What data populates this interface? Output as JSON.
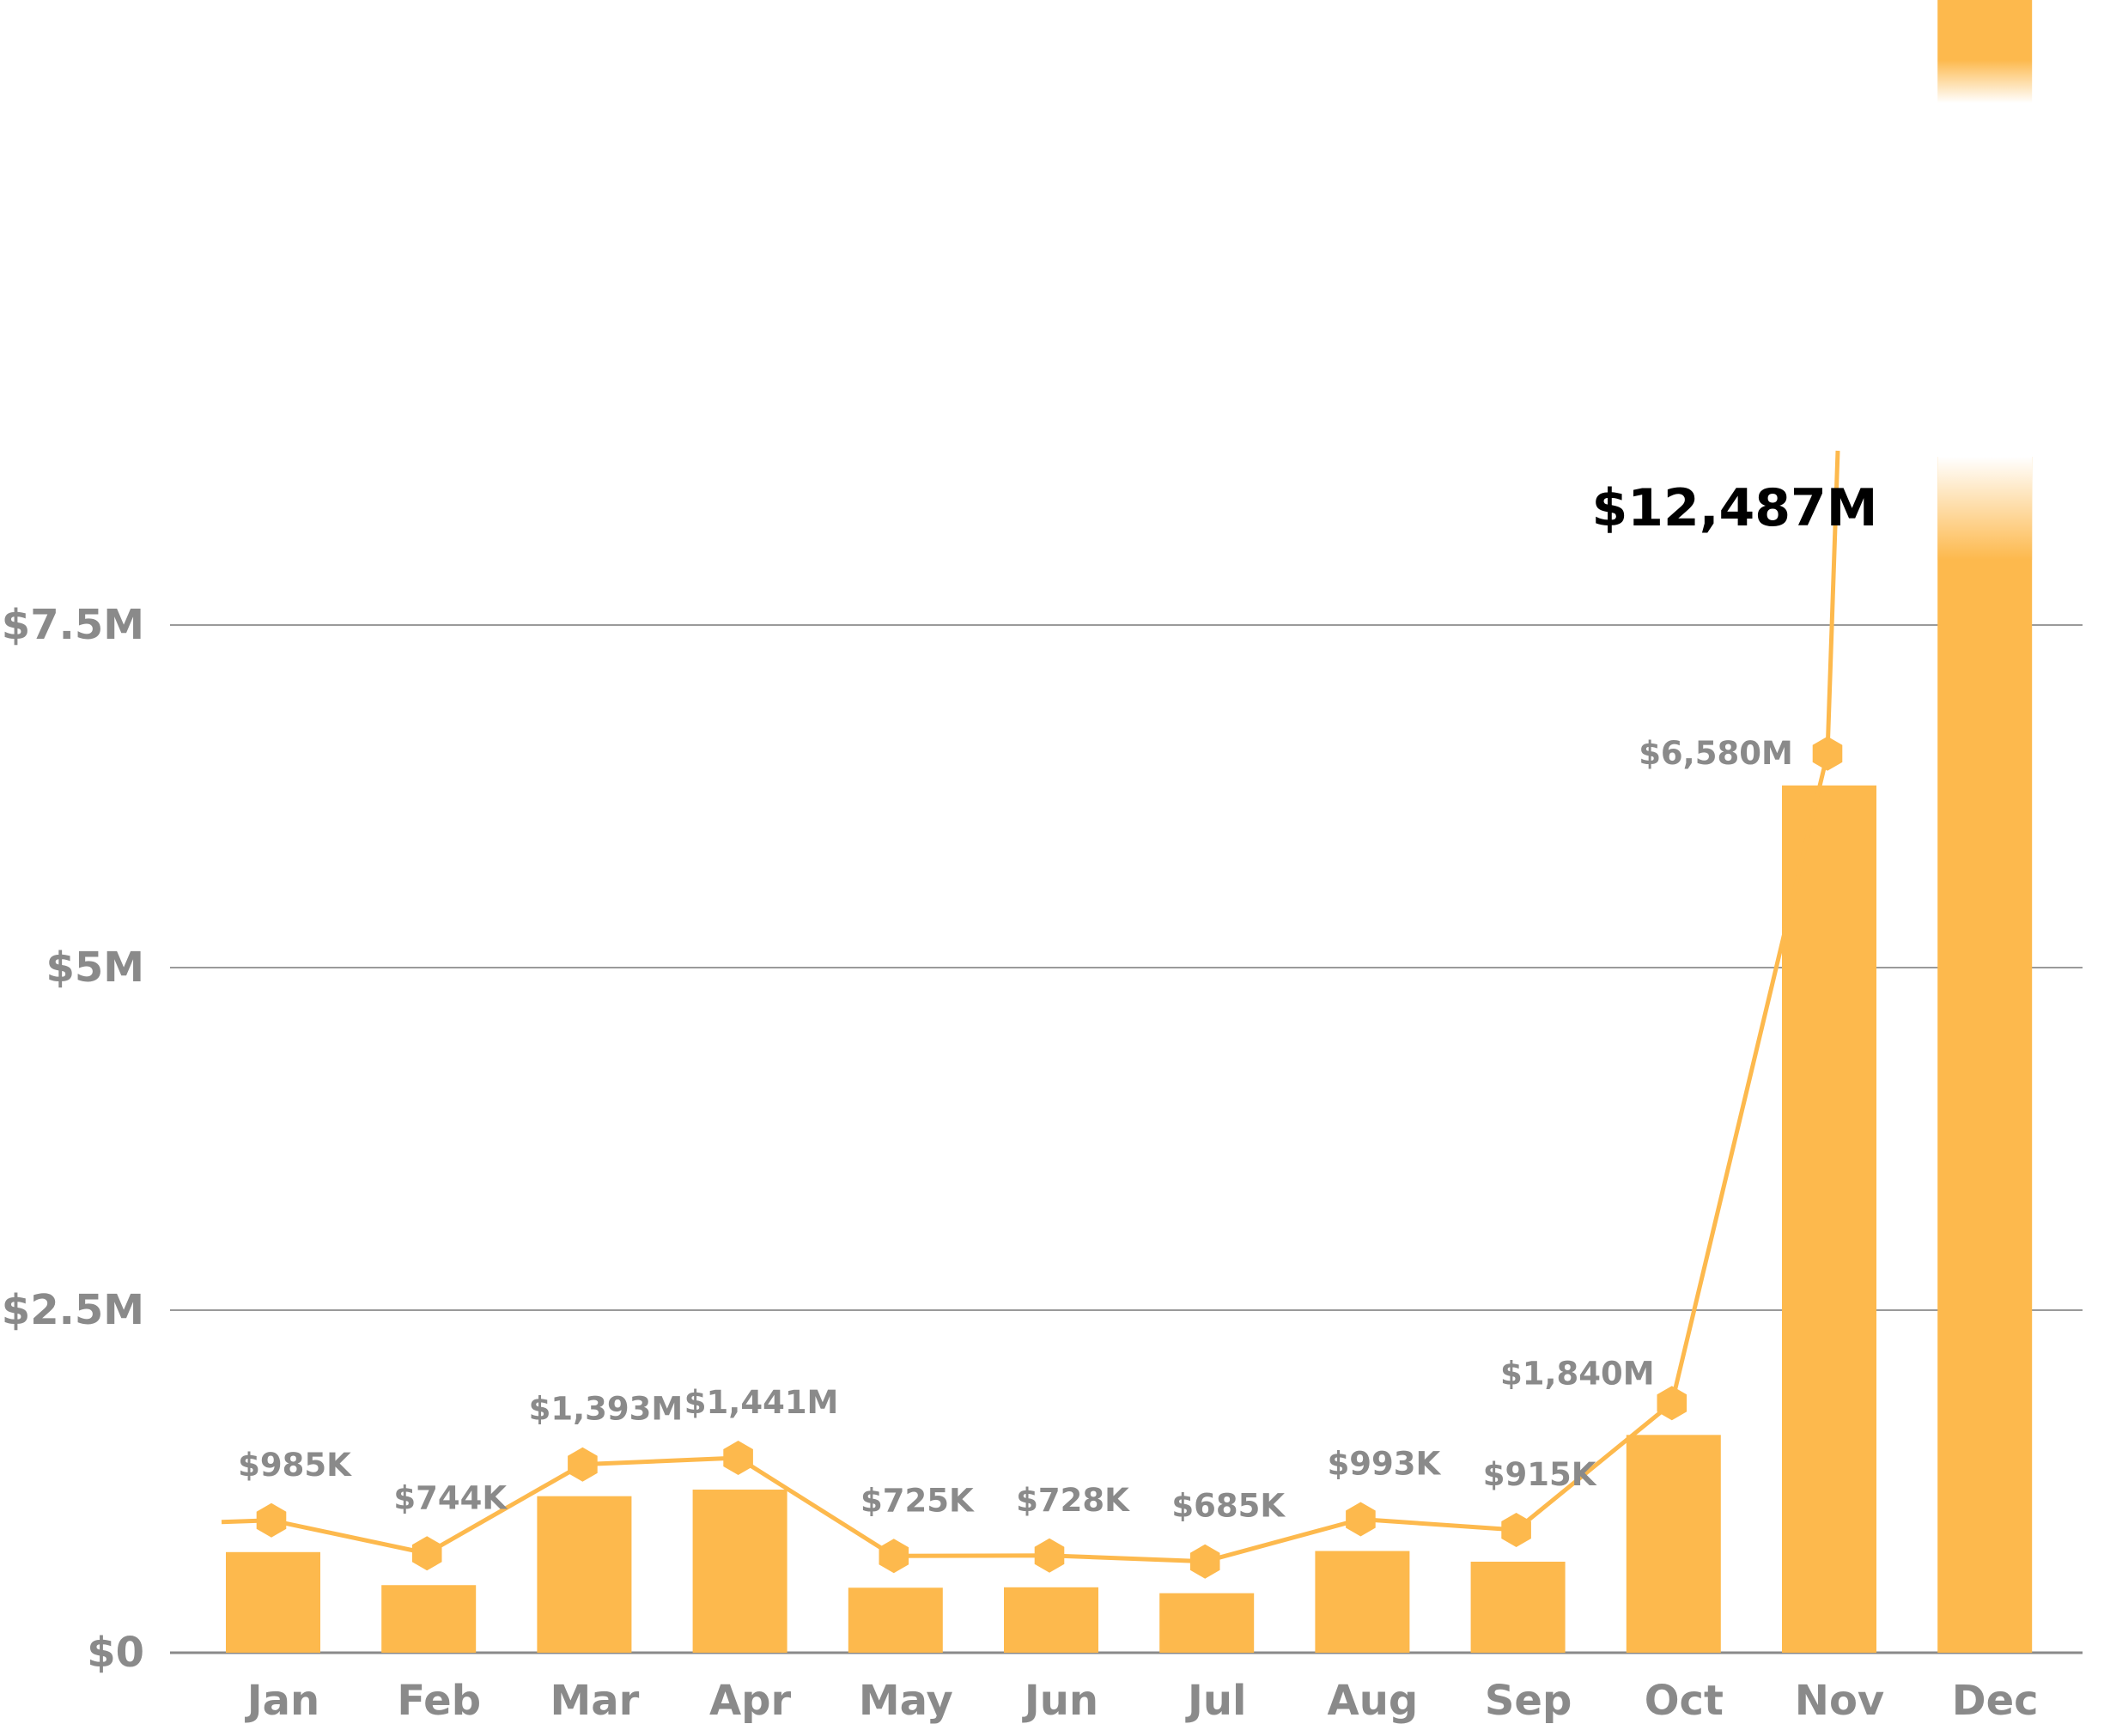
{
  "chart_data": {
    "type": "bar",
    "categories": [
      "Jan",
      "Feb",
      "Mar",
      "Apr",
      "May",
      "Jun",
      "Jul",
      "Aug",
      "Sep",
      "Oct",
      "Nov",
      "Dec"
    ],
    "values": [
      985,
      744,
      1393,
      1441,
      725,
      728,
      685,
      993,
      915,
      1840,
      6580,
      12487
    ],
    "value_unit": "thousands of dollars",
    "data_labels": [
      "$985K",
      "$744K",
      "$1,393M",
      "$1,441M",
      "$725K",
      "$728K",
      "$685K",
      "$993K",
      "$915K",
      "$1,840M",
      "$6,580M",
      "$12,487M"
    ],
    "highlight_label": "$12,487M",
    "broken_axis": true,
    "y_ticks": [
      {
        "value": 0,
        "label": "$0"
      },
      {
        "value": 2500,
        "label": "$2.5M"
      },
      {
        "value": 5000,
        "label": "$5M"
      },
      {
        "value": 7500,
        "label": "$7.5M"
      }
    ],
    "title": "",
    "xlabel": "",
    "ylabel": "",
    "grid": true,
    "legend": "none"
  },
  "colors": {
    "bar": "#FDB94D",
    "line": "#FDB94D",
    "grid": "#9a9a9a",
    "tick_text": "#8a8a8a",
    "highlight_text": "#000000"
  }
}
